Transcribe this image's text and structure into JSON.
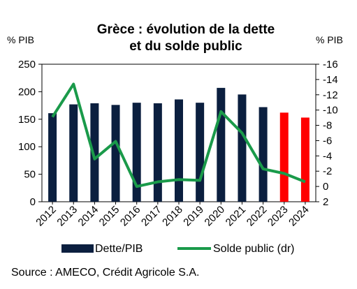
{
  "chart_data": {
    "type": "bar+line",
    "title_lines": [
      "Grèce : évolution de la dette",
      "et du solde public"
    ],
    "ylabel_left": "% PIB",
    "ylabel_right": "% PIB",
    "categories": [
      "2012",
      "2013",
      "2014",
      "2015",
      "2016",
      "2017",
      "2018",
      "2019",
      "2020",
      "2021",
      "2022",
      "2023",
      "2024"
    ],
    "ylim_left": [
      0,
      250
    ],
    "yticks_left": [
      0,
      50,
      100,
      150,
      200,
      250
    ],
    "ylim_right": [
      2,
      -16
    ],
    "yticks_right": [
      2,
      0,
      -2,
      -4,
      -6,
      -8,
      -10,
      -12,
      -14,
      -16
    ],
    "series": [
      {
        "name": "Dette/PIB",
        "type": "bar",
        "axis": "left",
        "color": "#0b1f3f",
        "forecast_color": "#ff0000",
        "forecast_from": "2023",
        "values": [
          161,
          177,
          179,
          176,
          180,
          179,
          186,
          180,
          207,
          195,
          172,
          162,
          153
        ]
      },
      {
        "name": "Solde public (dr)",
        "type": "line",
        "axis": "right",
        "color": "#1a9a4a",
        "values": [
          -9.1,
          -13.4,
          -3.6,
          -5.9,
          0.0,
          -0.6,
          -0.9,
          -0.8,
          -9.8,
          -7.0,
          -2.3,
          -1.7,
          -0.6
        ]
      }
    ],
    "legend_placement": "bottom",
    "grid": false
  },
  "source": "Source : AMECO, Crédit Agricole S.A."
}
